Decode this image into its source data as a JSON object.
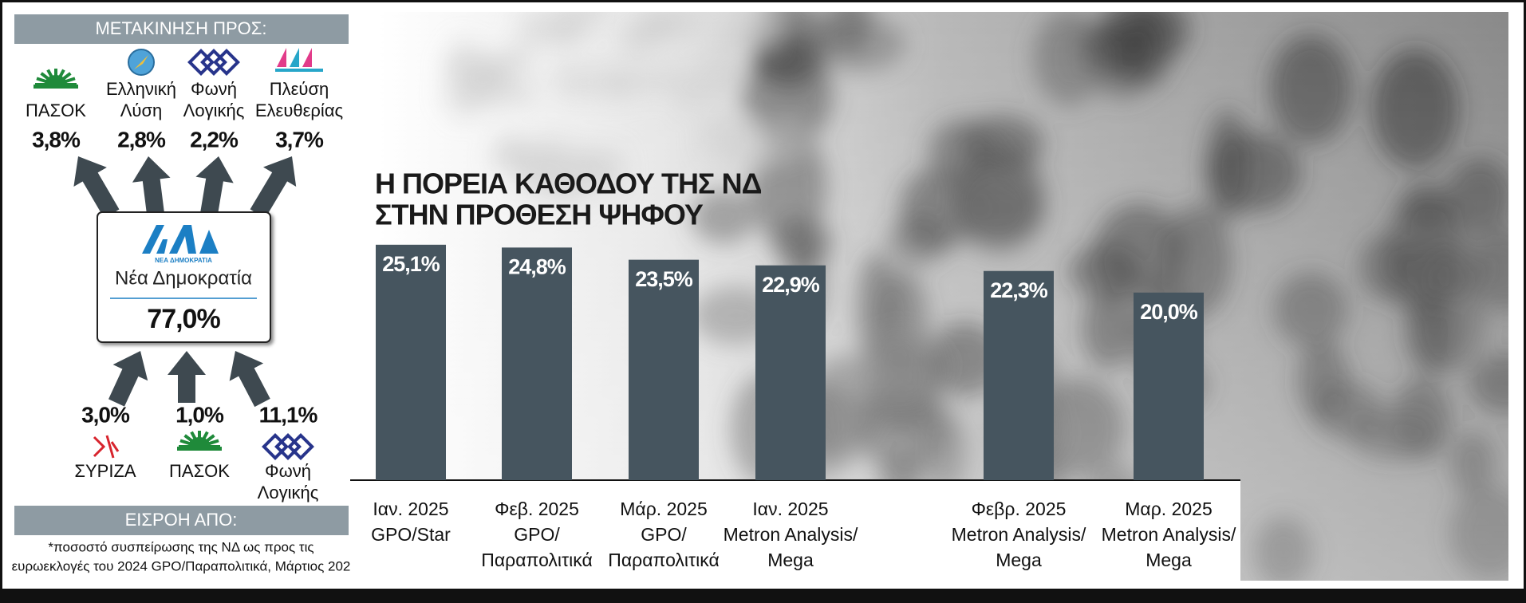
{
  "sidebar": {
    "outflow_title": "ΜΕΤΑΚΙΝΗΣΗ ΠΡΟΣ:",
    "outflows": [
      {
        "name": [
          "ΠΑΣΟΚ"
        ],
        "share": "3,8%"
      },
      {
        "name": [
          "Ελληνική",
          "Λύση"
        ],
        "share": "2,8%"
      },
      {
        "name": [
          "Φωνή",
          "Λογικής"
        ],
        "share": "2,2%"
      },
      {
        "name": [
          "Πλεύση",
          "Ελευθερίας"
        ],
        "share": "3,7%"
      }
    ],
    "party": {
      "logo_text": "ΝΕΑ ΔΗΜΟΚΡΑΤΙΑ",
      "name": "Νέα Δημοκρατία",
      "retention": "77,0%"
    },
    "inflows": [
      {
        "share": "3,0%",
        "name": [
          "ΣΥΡΙΖΑ"
        ]
      },
      {
        "share": "1,0%",
        "name": [
          "ΠΑΣΟΚ"
        ]
      },
      {
        "share": "11,1%",
        "name": [
          "Φωνή",
          "Λογικής"
        ]
      }
    ],
    "inflow_title": "ΕΙΣΡΟΗ ΑΠΟ:",
    "note": [
      "*ποσοστό συσπείρωσης της ΝΔ ως προς τις",
      "ευρωεκλογές του 2024 GPO/Παραπολιτικά, Μάρτιος 202"
    ]
  },
  "chart_data": {
    "type": "bar",
    "title": [
      "Η ΠΟΡΕΙΑ ΚΑΘΟΔΟΥ ΤΗΣ ΝΔ",
      "ΣΤΗΝ ΠΡΟΘΕΣΗ ΨΗΦΟΥ"
    ],
    "categories": [
      [
        "Ιαν. 2025",
        "GPO/Star"
      ],
      [
        "Φεβ. 2025",
        "GPO/",
        "Παραπολιτικά"
      ],
      [
        "Μάρ. 2025",
        "GPO/",
        "Παραπολιτικά"
      ],
      [
        "Ιαν. 2025",
        "Metron Analysis/",
        "Mega"
      ],
      [
        "Φεβρ. 2025",
        "Metron Analysis/",
        "Mega"
      ],
      [
        "Μαρ. 2025",
        "Metron Analysis/",
        "Mega"
      ]
    ],
    "values": [
      25.1,
      24.8,
      23.5,
      22.9,
      22.3,
      20.0
    ],
    "value_labels": [
      "25,1%",
      "24,8%",
      "23,5%",
      "22,9%",
      "22,3%",
      "20,0%"
    ],
    "color": "#46555f"
  }
}
